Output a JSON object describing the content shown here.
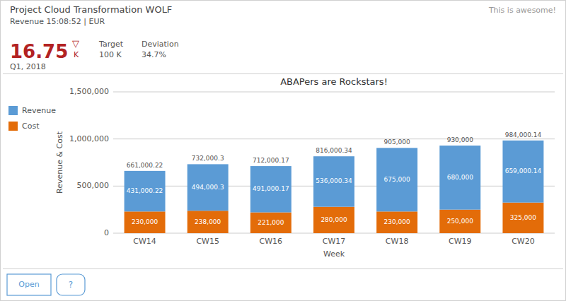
{
  "header": {
    "title": "Project Cloud Transformation WOLF",
    "subtitle": "Revenue 15:08:52 | EUR",
    "top_right_text": "This is awesome!",
    "kpi_value": "16.75",
    "kpi_indicator": "▽",
    "kpi_unit": "K",
    "kpi_color": "#b22222",
    "kpi_target_label": "Target",
    "kpi_target_value": "100 K",
    "kpi_deviation_label": "Deviation",
    "kpi_deviation_value": "34.7%",
    "kpi_period": "Q1, 2018"
  },
  "buttons": {
    "labels": [
      "Open",
      "?"
    ],
    "color": "#5b9bd5"
  },
  "chart_data": {
    "type": "bar",
    "stacked": true,
    "title": "ABAPers are Rockstars!",
    "x_label": "Week",
    "y_label": "Revenue & Cost",
    "categories": [
      "CW14",
      "CW15",
      "CW16",
      "CW17",
      "CW18",
      "CW19",
      "CW20"
    ],
    "series": [
      {
        "name": "Cost",
        "color": "#e36c09",
        "values": [
          230000,
          238000,
          221000,
          280000,
          230000,
          250000,
          325000
        ],
        "value_labels": [
          "230,000",
          "238,000",
          "221,000",
          "280,000",
          "230,000",
          "250,000",
          "325,000"
        ]
      },
      {
        "name": "Revenue",
        "color": "#5b9bd5",
        "values": [
          431000.22,
          494000.3,
          491000.17,
          536000.34,
          675000,
          680000,
          659000.14
        ],
        "value_labels": [
          "431,000.22",
          "494,000.3",
          "491,000.17",
          "536,000.34",
          "675,000",
          "680,000",
          "659,000.14"
        ]
      }
    ],
    "totals": [
      661000.22,
      732000.3,
      712000.17,
      816000.34,
      905000,
      930000,
      984000.14
    ],
    "total_labels": [
      "661,000.22",
      "732,000.3",
      "712,000.17",
      "816,000.34",
      "905,000",
      "930,000",
      "984,000.14"
    ],
    "ylim": [
      0,
      1500000
    ],
    "yticks": [
      0,
      {
        "value": 500000,
        "label": "500,000"
      },
      {
        "value": 1000000,
        "label": "1,000,000"
      },
      {
        "value": 1500000,
        "label": "1,500,000"
      }
    ],
    "grid": true,
    "legend": "left",
    "data_labels": true
  }
}
